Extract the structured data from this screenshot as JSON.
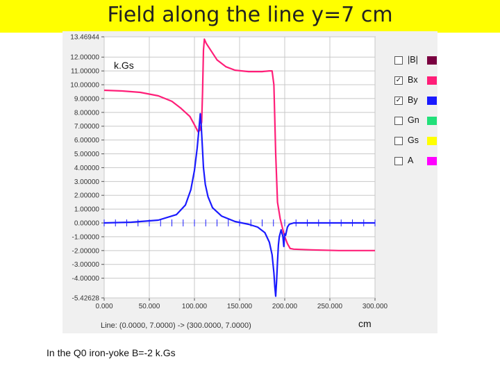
{
  "slide": {
    "title": "Field along the line  y=7 cm",
    "footnote": "In the Q0 iron-yoke B=-2 k.Gs",
    "status_line": "Line: (0.0000, 7.0000) -> (300.0000, 7.0000)",
    "unit_y": "k.Gs",
    "unit_x": "cm"
  },
  "legend": [
    {
      "label": "|B|",
      "checked": false,
      "color": "#7a0040"
    },
    {
      "label": "Bx",
      "checked": true,
      "color": "#ff1e78"
    },
    {
      "label": "By",
      "checked": true,
      "color": "#1a1aff"
    },
    {
      "label": "Gn",
      "checked": false,
      "color": "#22e07a"
    },
    {
      "label": "Gs",
      "checked": false,
      "color": "#ffff00"
    },
    {
      "label": "A",
      "checked": false,
      "color": "#ff00ff"
    }
  ],
  "chart_data": {
    "type": "line",
    "xlim": [
      0,
      300
    ],
    "ylim": [
      -5.42628,
      13.46944
    ],
    "x_ticks": [
      "0.000",
      "50.000",
      "100.000",
      "150.000",
      "200.000",
      "250.000",
      "300.000"
    ],
    "y_ticks": [
      "13.46944",
      "12.00000",
      "11.00000",
      "10.00000",
      "9.00000",
      "8.00000",
      "7.00000",
      "6.00000",
      "5.00000",
      "4.00000",
      "3.00000",
      "2.00000",
      "1.00000",
      "0.00000",
      "-1.00000",
      "-2.00000",
      "-3.00000",
      "-4.00000",
      "-5.42628"
    ],
    "grid": true,
    "series": [
      {
        "name": "Bx",
        "color": "#ff1e78",
        "x": [
          0,
          20,
          40,
          60,
          75,
          85,
          95,
          100,
          104,
          106,
          108,
          109,
          110,
          111,
          113,
          118,
          125,
          135,
          145,
          160,
          175,
          183,
          186,
          188,
          190,
          192,
          195,
          198,
          200,
          203,
          206,
          210,
          230,
          260,
          300
        ],
        "y": [
          9.6,
          9.55,
          9.45,
          9.2,
          8.8,
          8.3,
          7.7,
          7.1,
          6.6,
          6.7,
          7.3,
          9.5,
          12.5,
          13.3,
          13.0,
          12.5,
          11.8,
          11.3,
          11.05,
          10.95,
          10.95,
          11.0,
          11.0,
          10.0,
          5.0,
          1.5,
          0.3,
          -0.5,
          -1.0,
          -1.5,
          -1.85,
          -1.9,
          -1.95,
          -2.0,
          -2.0
        ]
      },
      {
        "name": "By",
        "color": "#1a1aff",
        "x": [
          0,
          30,
          60,
          80,
          90,
          96,
          100,
          103,
          105,
          106.5,
          107.5,
          108.5,
          110,
          112,
          115,
          120,
          130,
          145,
          160,
          170,
          178,
          183,
          186,
          188,
          189,
          190,
          191,
          192,
          193,
          194,
          196,
          198,
          199,
          200,
          201,
          203,
          205,
          210,
          230,
          300
        ],
        "y": [
          0.0,
          0.05,
          0.2,
          0.6,
          1.3,
          2.4,
          3.8,
          5.4,
          6.8,
          7.9,
          7.0,
          5.8,
          4.0,
          2.8,
          1.9,
          1.1,
          0.5,
          0.1,
          -0.1,
          -0.3,
          -0.7,
          -1.4,
          -2.3,
          -3.6,
          -4.6,
          -5.3,
          -4.2,
          -2.8,
          -1.6,
          -1.0,
          -0.5,
          -1.0,
          -1.7,
          -0.8,
          -0.9,
          -0.3,
          -0.1,
          0.0,
          0.0,
          0.0
        ]
      }
    ]
  }
}
